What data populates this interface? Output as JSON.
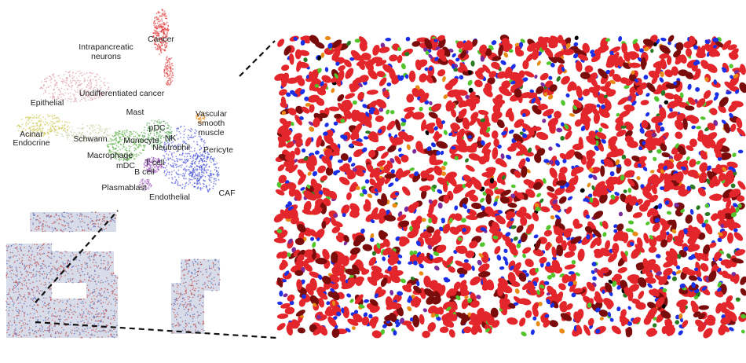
{
  "umap": {
    "labels": [
      "Cancer",
      "Intrapancreatic neurons",
      "Undifferentiated cancer",
      "Epithelial",
      "Mast",
      "Vascular smooth muscle",
      "pDC",
      "NK",
      "Monocyte",
      "Neutrophil",
      "Acinar",
      "Endocrine",
      "Schwann",
      "Pericyte",
      "Macrophage",
      "mDC",
      "T cell",
      "B cell",
      "Plasmablast",
      "Endothelial",
      "CAF"
    ]
  }
}
